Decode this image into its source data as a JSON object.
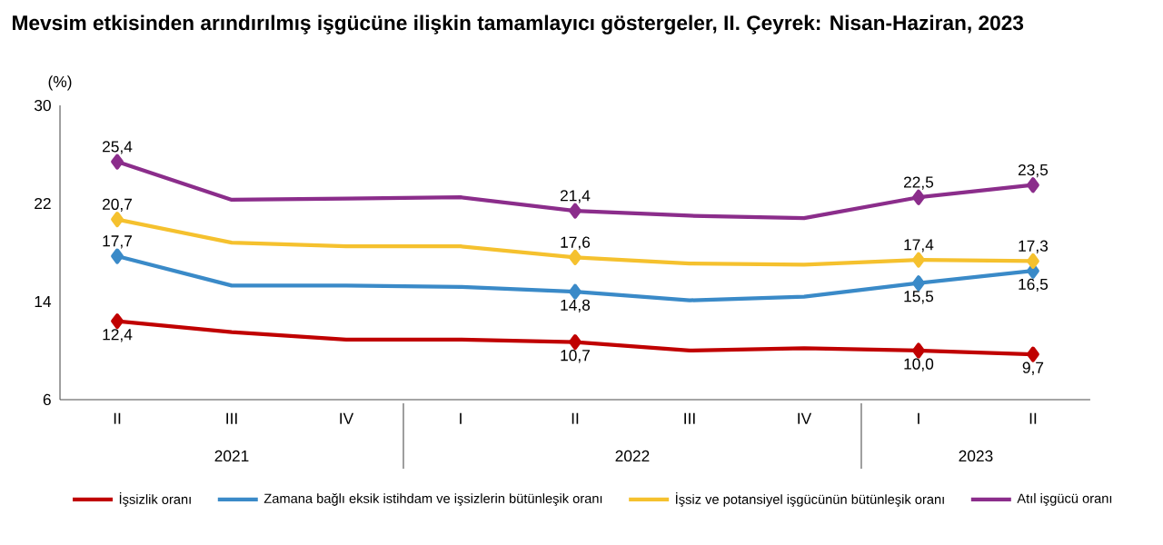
{
  "chart_data": {
    "type": "line",
    "title": "Mevsim etkisinden arındırılmış işgücüne ilişkin tamamlayıcı göstergeler, II. Çeyrek: Nisan-Haziran, 2023",
    "ylabel": "(%)",
    "categories": [
      "II",
      "III",
      "IV",
      "I",
      "II",
      "III",
      "IV",
      "I",
      "II"
    ],
    "annotations": [
      "2021",
      "2022",
      "2023"
    ],
    "ylim": [
      6,
      30
    ],
    "yticks": [
      6,
      14,
      22,
      30
    ],
    "grid": false,
    "legend": "bottom",
    "line_style": "solid",
    "series": [
      {
        "name": "İşsizlik oranı",
        "color": "#c00000",
        "values": [
          12.4,
          11.5,
          10.9,
          10.9,
          10.7,
          10.0,
          10.2,
          10.0,
          9.7
        ],
        "value_labels": [
          "12,4",
          null,
          null,
          null,
          "10,7",
          null,
          null,
          "10,0",
          "9,7"
        ]
      },
      {
        "name": "Zamana bağlı eksik istihdam ve işsizlerin bütünleşik oranı",
        "color": "#3a8ac8",
        "values": [
          17.7,
          15.3,
          15.3,
          15.2,
          14.8,
          14.1,
          14.4,
          15.5,
          16.5
        ],
        "value_labels": [
          "17,7",
          null,
          null,
          null,
          "14,8",
          null,
          null,
          "15,5",
          "16,5"
        ]
      },
      {
        "name": "İşsiz ve potansiyel işgücünün bütünleşik oranı",
        "color": "#f5c12e",
        "values": [
          20.7,
          18.8,
          18.5,
          18.5,
          17.6,
          17.1,
          17.0,
          17.4,
          17.3
        ],
        "value_labels": [
          "20,7",
          null,
          null,
          null,
          "17,6",
          null,
          null,
          "17,4",
          "17,3"
        ]
      },
      {
        "name": "Atıl işgücü oranı",
        "color": "#8b2d8b",
        "values": [
          25.4,
          22.3,
          22.4,
          22.5,
          21.4,
          21.0,
          20.8,
          22.5,
          23.5
        ],
        "value_labels": [
          "25,4",
          null,
          null,
          null,
          "21,4",
          null,
          null,
          "22,5",
          "23,5"
        ]
      }
    ]
  }
}
